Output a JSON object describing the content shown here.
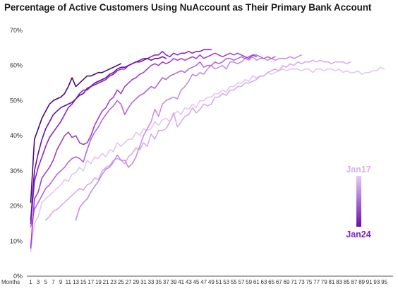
{
  "title": "Percentage of Active Customers Using NuAccount as Their Primary Bank Account",
  "colors": {
    "gradient_top": "#e8c8f4",
    "gradient_bottom": "#6a0dad",
    "jan17_label": "#d8aef0",
    "jan24_label": "#7a22c0",
    "cohort_colors": [
      "#e3c6f1",
      "#d6abec",
      "#c78ce4",
      "#b466da",
      "#9e3fcf",
      "#8a24c0",
      "#6a0dad",
      "#4b0a7a"
    ]
  },
  "chart_data": {
    "type": "line",
    "xlabel": "Months",
    "ylim": [
      0,
      70
    ],
    "xlim": [
      1,
      96
    ],
    "yticks": [
      0,
      10,
      20,
      30,
      40,
      50,
      60,
      70
    ],
    "ytick_labels": [
      "0%",
      "10%",
      "20%",
      "30%",
      "40%",
      "50%",
      "60%",
      "70%"
    ],
    "xticks": [
      1,
      3,
      5,
      7,
      9,
      11,
      13,
      15,
      17,
      19,
      21,
      23,
      25,
      27,
      29,
      31,
      33,
      35,
      37,
      39,
      41,
      43,
      45,
      47,
      49,
      51,
      53,
      55,
      57,
      59,
      61,
      63,
      65,
      67,
      69,
      71,
      73,
      75,
      77,
      79,
      81,
      83,
      85,
      87,
      89,
      91,
      93,
      95
    ],
    "grid": false,
    "legend": {
      "type": "gradient",
      "top_label": "Jan17",
      "bottom_label": "Jan24",
      "placement": "right"
    },
    "series": [
      {
        "x": [
          1,
          2,
          3,
          4,
          5,
          6,
          7,
          8,
          9,
          10,
          11,
          12,
          13,
          14,
          15,
          16,
          17,
          18,
          19,
          20,
          21,
          22,
          23,
          24,
          25,
          26,
          27,
          28,
          29,
          30,
          31,
          32,
          33,
          34,
          35,
          36,
          37,
          38,
          39,
          40,
          41,
          42,
          43,
          44,
          45,
          46,
          47,
          48,
          49,
          50,
          51,
          52,
          53,
          54,
          55,
          56,
          57,
          58,
          59,
          60,
          61,
          62,
          63,
          64,
          65,
          66,
          67,
          68,
          69,
          70,
          71,
          72,
          73,
          74,
          75,
          76,
          77,
          78,
          79,
          80,
          81,
          82,
          83,
          84,
          85,
          86,
          87,
          88,
          89,
          90,
          91,
          92,
          93,
          94,
          95
        ],
        "values": [
          7,
          15,
          17,
          21,
          22,
          23,
          24,
          25,
          26,
          27.5,
          27,
          29,
          29.5,
          31,
          30,
          33,
          32,
          34,
          33.5,
          35,
          34,
          36,
          35.5,
          38,
          37,
          38,
          39,
          39,
          41,
          40,
          42,
          41.5,
          42,
          44,
          43,
          44.5,
          45,
          44,
          46,
          47,
          46,
          48,
          47.5,
          49,
          48,
          50,
          50,
          51,
          51,
          52,
          52,
          53,
          52.5,
          54,
          54,
          55,
          55,
          56,
          55.5,
          57,
          56.5,
          57,
          57,
          58,
          57.5,
          58,
          58.5,
          59,
          58.5,
          59,
          59,
          59,
          58.5,
          59,
          59,
          58,
          59,
          59,
          58.5,
          59,
          59,
          58.5,
          59,
          58,
          58.5,
          58,
          58,
          58.5,
          57.5,
          58,
          58,
          58.5,
          58.5,
          59.5,
          59
        ]
      },
      {
        "x": [
          5,
          6,
          7,
          8,
          9,
          10,
          11,
          12,
          13,
          14,
          15,
          16,
          17,
          18,
          19,
          20,
          21,
          22,
          23,
          24,
          25,
          26,
          27,
          28,
          29,
          30,
          31,
          32,
          33,
          34,
          35,
          36,
          37,
          38,
          39,
          40,
          41,
          42,
          43,
          44,
          45,
          46,
          47,
          48,
          49,
          50,
          51,
          52,
          53,
          54,
          55,
          56,
          57,
          58,
          59,
          60,
          61,
          62,
          63,
          64,
          65,
          66,
          67,
          68,
          69,
          70,
          71,
          72,
          73,
          74,
          75,
          76,
          77,
          78,
          79,
          80,
          81,
          82,
          83,
          84,
          85,
          86
        ],
        "values": [
          16,
          17,
          18.5,
          19,
          20,
          21,
          22,
          23,
          24,
          25,
          24.5,
          26,
          26.5,
          28,
          27.5,
          30,
          31,
          31.5,
          33,
          33.5,
          33,
          32,
          34,
          35,
          36.5,
          36,
          38,
          37,
          40.5,
          39,
          41.5,
          41.5,
          42,
          44,
          46.5,
          42.5,
          44,
          45.5,
          46,
          48,
          46.5,
          47.5,
          49,
          48.5,
          49,
          51,
          51,
          52,
          51.5,
          53,
          53,
          54,
          54,
          55,
          55,
          55.5,
          56,
          57,
          57,
          58,
          58.5,
          59,
          58.5,
          60,
          59.5,
          60.5,
          60,
          61,
          60.5,
          61,
          61,
          61.5,
          61,
          61.5,
          61,
          61,
          60.5,
          61,
          61,
          61,
          60.5,
          61
        ]
      },
      {
        "x": [
          13,
          14,
          15,
          16,
          17,
          18,
          19,
          20,
          21,
          22,
          23,
          24,
          25,
          26,
          27,
          28,
          29,
          30,
          31,
          32,
          33,
          34,
          35,
          36,
          37,
          38,
          39,
          40,
          41,
          42,
          43,
          44,
          45,
          46,
          47,
          48,
          49,
          50,
          51,
          52,
          53,
          54,
          55,
          56,
          57,
          58,
          59,
          60,
          61,
          62,
          63,
          64,
          65,
          66,
          67,
          68,
          69,
          70,
          71,
          72,
          73
        ],
        "values": [
          16,
          19.5,
          21,
          22,
          24,
          25.5,
          27,
          29,
          30.5,
          31,
          32.5,
          34.5,
          33,
          33,
          31,
          32,
          34,
          37,
          40,
          42,
          44,
          47.5,
          45.5,
          49,
          50,
          50.5,
          51,
          50.5,
          53,
          54,
          55.5,
          57.5,
          57,
          58,
          57.5,
          59,
          60,
          59,
          59.5,
          60,
          59,
          61,
          61,
          60.5,
          61,
          62,
          61.5,
          62.5,
          61.5,
          62,
          62,
          61.5,
          62,
          61.5,
          62,
          62,
          62,
          62.5,
          62,
          62.5,
          63
        ]
      },
      {
        "x": [
          1,
          2,
          3,
          4,
          5,
          6,
          7,
          8,
          9,
          10,
          11,
          12,
          13,
          14,
          15,
          16,
          17,
          18,
          19,
          20,
          21,
          22,
          23,
          24,
          25,
          26,
          27,
          28,
          29,
          30,
          31,
          32,
          33,
          34,
          35,
          36,
          37,
          38,
          39,
          40,
          41,
          42,
          43,
          44,
          45,
          46,
          47,
          48,
          49,
          50,
          51,
          52,
          53,
          54,
          55,
          56,
          57,
          58,
          59,
          60,
          61,
          62,
          63,
          64,
          65,
          66
        ],
        "values": [
          14,
          19,
          21,
          23,
          25,
          26,
          27.5,
          29,
          30,
          31,
          32.5,
          33.5,
          34,
          33.5,
          32.5,
          36,
          39,
          41,
          42.5,
          44.5,
          46,
          47.5,
          48.5,
          50,
          49,
          46,
          48,
          49.5,
          50.5,
          51.5,
          52,
          53,
          54,
          53.5,
          55,
          56.5,
          56,
          57,
          57.5,
          58,
          58.5,
          58,
          59,
          59.5,
          60,
          61,
          59.5,
          60,
          60,
          61,
          60.5,
          61,
          62,
          62,
          61.5,
          62,
          62.5,
          62,
          62.5,
          63,
          63,
          62.5,
          62,
          62.5,
          62,
          62.5
        ]
      },
      {
        "x": [
          1,
          2,
          3,
          4,
          5,
          6,
          7,
          8,
          9,
          10,
          11,
          12,
          13,
          14,
          15,
          16,
          17,
          18,
          19,
          20,
          21,
          22,
          23,
          24,
          25,
          26,
          27,
          28,
          29,
          30,
          31,
          32,
          33,
          34,
          35,
          36,
          37,
          38,
          39,
          40,
          41,
          42,
          43,
          44,
          45,
          46,
          47,
          48,
          49,
          50,
          51,
          52,
          53,
          54,
          55,
          56,
          57,
          58,
          59,
          60,
          61
        ],
        "values": [
          8,
          22,
          24,
          28,
          29.5,
          31,
          33,
          36,
          38,
          40,
          41,
          39.5,
          40,
          38,
          37.5,
          38,
          40,
          43,
          45,
          47,
          48,
          50,
          51,
          53,
          52,
          54,
          55,
          56,
          56.5,
          57.5,
          58,
          59,
          60,
          60.5,
          60,
          61,
          60.5,
          61,
          62,
          61.5,
          62,
          61.5,
          62,
          62.5,
          62,
          63,
          62,
          62.5,
          63,
          63.5,
          63,
          62.5,
          63,
          63.5,
          63,
          63.5,
          63,
          62.5,
          62,
          63,
          62.5
        ]
      },
      {
        "x": [
          1,
          2,
          3,
          4,
          5,
          6,
          7,
          8,
          9,
          10,
          11,
          12,
          13,
          14,
          15,
          16,
          17,
          18,
          19,
          20,
          21,
          22,
          23,
          24,
          25,
          26,
          27,
          28,
          29,
          30,
          31,
          32,
          33,
          34,
          35,
          36,
          37,
          38,
          39,
          40,
          41,
          42,
          43,
          44,
          45,
          46,
          47,
          48,
          49
        ],
        "values": [
          15,
          27,
          31,
          34,
          37,
          39.5,
          41,
          42.5,
          44,
          46,
          48,
          49,
          50.5,
          52,
          53,
          53,
          54,
          54.5,
          55,
          55.5,
          56,
          57,
          57.5,
          58.5,
          59,
          59,
          60,
          60.5,
          61,
          61.5,
          62,
          62,
          62.5,
          63,
          63,
          64,
          63,
          62.5,
          63.5,
          63,
          63.5,
          63.5,
          64,
          63.5,
          64,
          64,
          64.5,
          64.5,
          64.5
        ]
      },
      {
        "x": [
          1,
          2,
          3,
          4,
          5,
          6,
          7,
          8,
          9,
          10,
          11,
          12,
          13,
          14,
          15,
          16,
          17,
          18,
          19,
          20,
          21,
          22,
          23,
          24,
          25,
          26,
          27,
          28,
          29,
          30,
          31,
          32,
          33,
          34,
          35,
          36,
          37
        ],
        "values": [
          16,
          30,
          35,
          39,
          42,
          44,
          46,
          47,
          48,
          48.5,
          49,
          49.5,
          50.5,
          51.5,
          52,
          53.5,
          54,
          55,
          55.5,
          56,
          56.5,
          57.5,
          58,
          59,
          59.5,
          59.5,
          60,
          60.5,
          61,
          61,
          61.5,
          62,
          61.5,
          62,
          62,
          62.5,
          62
        ]
      },
      {
        "x": [
          1,
          2,
          3,
          4,
          5,
          6,
          7,
          8,
          9,
          10,
          11,
          12,
          13,
          14,
          15,
          16,
          17,
          18,
          19,
          20,
          21,
          22,
          23,
          24,
          25
        ],
        "values": [
          21,
          39,
          42,
          45,
          47,
          49,
          50,
          50.5,
          51,
          52,
          54,
          56.5,
          54,
          55,
          56,
          57,
          57,
          57.5,
          58,
          58,
          58.5,
          59,
          59.5,
          60,
          60.5
        ]
      }
    ]
  }
}
